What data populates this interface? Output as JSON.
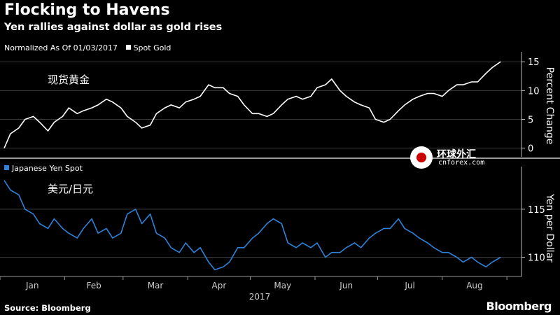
{
  "header": {
    "title": "Flocking to Havens",
    "subtitle": "Yen rallies against dollar as gold rises"
  },
  "footer": {
    "source": "Source: Bloomberg",
    "brand": "Bloomberg"
  },
  "watermark": {
    "cn": "环球外汇",
    "en": "cnforex.com"
  },
  "colors": {
    "gold_line": "#ffffff",
    "yen_line": "#2f82d8",
    "grid": "#3a3a3a",
    "divider": "#9a9a9a"
  },
  "chart_data": [
    {
      "type": "line",
      "note": "Normalized As Of 01/03/2017",
      "legend": "Spot Gold",
      "annotation": "现货黄金",
      "ylabel": "Percent Change",
      "ylim": [
        -1.5,
        16
      ],
      "yticks": [
        0,
        5,
        10,
        15
      ],
      "grid": true,
      "series": [
        {
          "name": "Spot Gold",
          "x": [
            "2017-01-03",
            "2017-01-06",
            "2017-01-10",
            "2017-01-13",
            "2017-01-17",
            "2017-01-20",
            "2017-01-24",
            "2017-01-27",
            "2017-01-31",
            "2017-02-03",
            "2017-02-07",
            "2017-02-10",
            "2017-02-14",
            "2017-02-17",
            "2017-02-21",
            "2017-02-24",
            "2017-02-28",
            "2017-03-03",
            "2017-03-07",
            "2017-03-10",
            "2017-03-14",
            "2017-03-17",
            "2017-03-21",
            "2017-03-24",
            "2017-03-28",
            "2017-03-31",
            "2017-04-04",
            "2017-04-07",
            "2017-04-11",
            "2017-04-14",
            "2017-04-18",
            "2017-04-21",
            "2017-04-25",
            "2017-04-28",
            "2017-05-02",
            "2017-05-05",
            "2017-05-09",
            "2017-05-12",
            "2017-05-16",
            "2017-05-19",
            "2017-05-23",
            "2017-05-26",
            "2017-05-30",
            "2017-06-02",
            "2017-06-06",
            "2017-06-09",
            "2017-06-13",
            "2017-06-16",
            "2017-06-20",
            "2017-06-23",
            "2017-06-27",
            "2017-06-30",
            "2017-07-04",
            "2017-07-07",
            "2017-07-11",
            "2017-07-14",
            "2017-07-18",
            "2017-07-21",
            "2017-07-25",
            "2017-07-28",
            "2017-08-01",
            "2017-08-04",
            "2017-08-08",
            "2017-08-11",
            "2017-08-15",
            "2017-08-18",
            "2017-08-22",
            "2017-08-25",
            "2017-08-29"
          ],
          "values": [
            0,
            2.5,
            3.5,
            5,
            5.5,
            4.5,
            3,
            4.5,
            5.5,
            7,
            6,
            6.5,
            7,
            7.5,
            8.5,
            8,
            7,
            5.5,
            4.5,
            3.5,
            4,
            6,
            7,
            7.5,
            7,
            8,
            8.5,
            9,
            11,
            10.5,
            10.5,
            9.5,
            9,
            7.5,
            6,
            6,
            5.5,
            6,
            7.5,
            8.5,
            9,
            8.5,
            9,
            10.5,
            11,
            12,
            10,
            9,
            8,
            7.5,
            7,
            5,
            4.5,
            5,
            6.5,
            7.5,
            8.5,
            9,
            9.5,
            9.5,
            9,
            10,
            11,
            11,
            11.5,
            11.5,
            13,
            14,
            15
          ]
        }
      ]
    },
    {
      "type": "line",
      "legend": "Japanese Yen Spot",
      "annotation": "美元/日元",
      "ylabel": "Yen per Dollar",
      "ylim": [
        108,
        119
      ],
      "yticks": [
        110,
        115
      ],
      "grid": true,
      "categories": [
        "Jan",
        "Feb",
        "Mar",
        "Apr",
        "May",
        "Jun",
        "Jul",
        "Aug"
      ],
      "year_label": "2017",
      "series": [
        {
          "name": "Japanese Yen Spot",
          "x": [
            "2017-01-03",
            "2017-01-06",
            "2017-01-10",
            "2017-01-13",
            "2017-01-17",
            "2017-01-20",
            "2017-01-24",
            "2017-01-27",
            "2017-01-31",
            "2017-02-03",
            "2017-02-07",
            "2017-02-10",
            "2017-02-14",
            "2017-02-17",
            "2017-02-21",
            "2017-02-24",
            "2017-02-28",
            "2017-03-03",
            "2017-03-07",
            "2017-03-10",
            "2017-03-14",
            "2017-03-17",
            "2017-03-21",
            "2017-03-24",
            "2017-03-28",
            "2017-03-31",
            "2017-04-04",
            "2017-04-07",
            "2017-04-11",
            "2017-04-14",
            "2017-04-18",
            "2017-04-21",
            "2017-04-25",
            "2017-04-28",
            "2017-05-02",
            "2017-05-05",
            "2017-05-09",
            "2017-05-12",
            "2017-05-16",
            "2017-05-19",
            "2017-05-23",
            "2017-05-26",
            "2017-05-30",
            "2017-06-02",
            "2017-06-06",
            "2017-06-09",
            "2017-06-13",
            "2017-06-16",
            "2017-06-20",
            "2017-06-23",
            "2017-06-27",
            "2017-06-30",
            "2017-07-04",
            "2017-07-07",
            "2017-07-11",
            "2017-07-14",
            "2017-07-18",
            "2017-07-21",
            "2017-07-25",
            "2017-07-28",
            "2017-08-01",
            "2017-08-04",
            "2017-08-08",
            "2017-08-11",
            "2017-08-15",
            "2017-08-18",
            "2017-08-22",
            "2017-08-25",
            "2017-08-29"
          ],
          "values": [
            118,
            117,
            116.5,
            115,
            114.5,
            113.5,
            113,
            114,
            113,
            112.5,
            112,
            113,
            114,
            112.5,
            113,
            112,
            112.5,
            114.5,
            115,
            113.5,
            114.5,
            112.5,
            112,
            111,
            110.5,
            111.5,
            110.5,
            111,
            109.5,
            108.7,
            109,
            109.5,
            111,
            111,
            112,
            112.5,
            113.5,
            114,
            113.5,
            111.5,
            111,
            111.5,
            111,
            111.5,
            110,
            110.5,
            110.5,
            111,
            111.5,
            111,
            112,
            112.5,
            113,
            113,
            114,
            113,
            112.5,
            112,
            111.5,
            111,
            110.5,
            110.5,
            110,
            109.5,
            110,
            109.5,
            109,
            109.5,
            110
          ]
        }
      ]
    }
  ]
}
